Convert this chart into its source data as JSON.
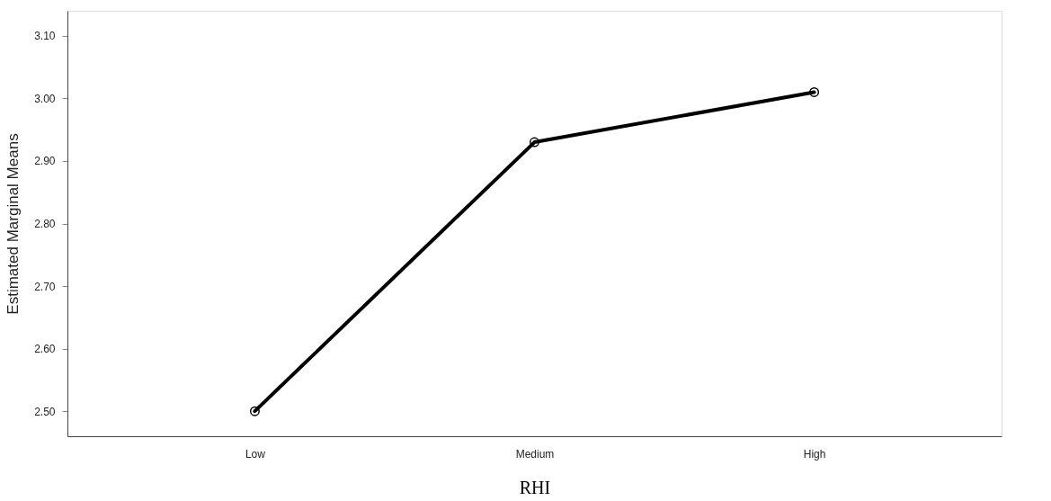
{
  "chart_data": {
    "type": "line",
    "xlabel": "RHI",
    "ylabel": "Estimated Marginal Means",
    "categories": [
      "Low",
      "Medium",
      "High"
    ],
    "series": [
      {
        "color": "#000000",
        "values": [
          2.5,
          2.93,
          3.01
        ]
      }
    ],
    "ylim": [
      2.46,
      3.14
    ],
    "yticks": [
      {
        "value": 2.5,
        "label": "2.50"
      },
      {
        "value": 2.6,
        "label": "2.60"
      },
      {
        "value": 2.7,
        "label": "2.70"
      },
      {
        "value": 2.8,
        "label": "2.80"
      },
      {
        "value": 2.9,
        "label": "2.90"
      },
      {
        "value": 3.0,
        "label": "3.00"
      },
      {
        "value": 3.1,
        "label": "3.10"
      }
    ],
    "marker": "circle",
    "line_style": "solid",
    "grid": false
  }
}
